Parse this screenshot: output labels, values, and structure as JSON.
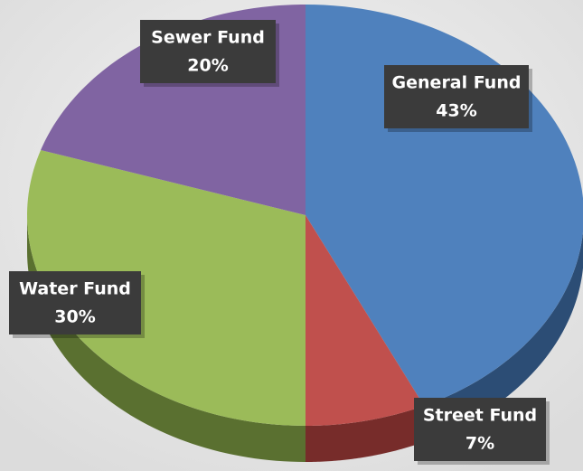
{
  "chart_data": {
    "type": "pie",
    "categories": [
      "General Fund",
      "Street Fund",
      "Water Fund",
      "Sewer Fund"
    ],
    "values": [
      43,
      7,
      30,
      20
    ],
    "value_labels": [
      "43%",
      "7%",
      "30%",
      "20%"
    ],
    "colors": [
      "#4f81bd",
      "#c0504d",
      "#9bbb59",
      "#8064a2"
    ],
    "side_colors": [
      "#2c4d75",
      "#772c2a",
      "#5a7030",
      "#4d3b62"
    ]
  }
}
